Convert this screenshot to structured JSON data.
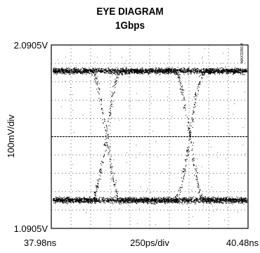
{
  "chart_data": {
    "type": "scatter",
    "title": "EYE DIAGRAM",
    "subtitle": "1Gbps",
    "figure_code": "MAX3280-4",
    "y_axis": {
      "label": "100mV/div",
      "top_label": "2.0905V",
      "bottom_label": "1.0905V",
      "ylim": [
        1.0905,
        2.0905
      ],
      "unit": "V",
      "divisions": 10
    },
    "x_axis": {
      "label": "250ps/div",
      "left_label": "37.98ns",
      "right_label": "40.48ns",
      "xlim": [
        37.98,
        40.48
      ],
      "unit": "ns",
      "divisions": 10
    },
    "grid": "dotted",
    "center_reference_line": true,
    "series": [
      {
        "kind": "eye_traces",
        "high_level": 1.9505,
        "low_level": 1.2455,
        "crossing_times": [
          38.675,
          39.735
        ],
        "crossing_level": 1.5985,
        "transition_width": 0.39
      }
    ]
  },
  "colors": {
    "trace": "#000000",
    "grid": "#000000",
    "background": "#ffffff"
  }
}
